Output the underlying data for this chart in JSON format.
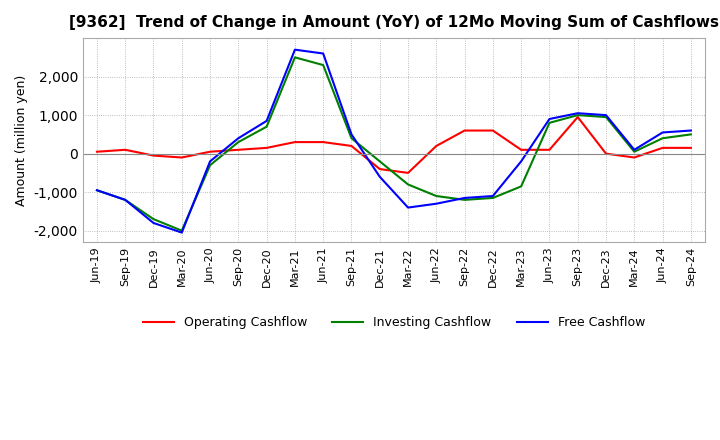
{
  "title": "[9362]  Trend of Change in Amount (YoY) of 12Mo Moving Sum of Cashflows",
  "ylabel": "Amount (million yen)",
  "ylim": [
    -2300,
    3000
  ],
  "yticks": [
    -2000,
    -1000,
    0,
    1000,
    2000
  ],
  "x_labels": [
    "Jun-19",
    "Sep-19",
    "Dec-19",
    "Mar-20",
    "Jun-20",
    "Sep-20",
    "Dec-20",
    "Mar-21",
    "Jun-21",
    "Sep-21",
    "Dec-21",
    "Mar-22",
    "Jun-22",
    "Sep-22",
    "Dec-22",
    "Mar-23",
    "Jun-23",
    "Sep-23",
    "Dec-23",
    "Mar-24",
    "Jun-24",
    "Sep-24"
  ],
  "operating": [
    50,
    100,
    -50,
    -100,
    50,
    100,
    150,
    300,
    300,
    200,
    -400,
    -500,
    200,
    600,
    600,
    100,
    100,
    950,
    0,
    -100,
    150,
    150
  ],
  "investing": [
    -950,
    -1200,
    -1700,
    -2000,
    -300,
    300,
    700,
    2500,
    2300,
    400,
    -200,
    -800,
    -1100,
    -1200,
    -1150,
    -850,
    800,
    1000,
    950,
    50,
    400,
    500
  ],
  "free": [
    -950,
    -1200,
    -1800,
    -2050,
    -200,
    400,
    850,
    2700,
    2600,
    500,
    -600,
    -1400,
    -1300,
    -1150,
    -1100,
    -200,
    900,
    1050,
    1000,
    100,
    550,
    600
  ],
  "operating_color": "#ff0000",
  "investing_color": "#008000",
  "free_color": "#0000ff",
  "background_color": "#ffffff",
  "grid_color": "#aaaaaa"
}
